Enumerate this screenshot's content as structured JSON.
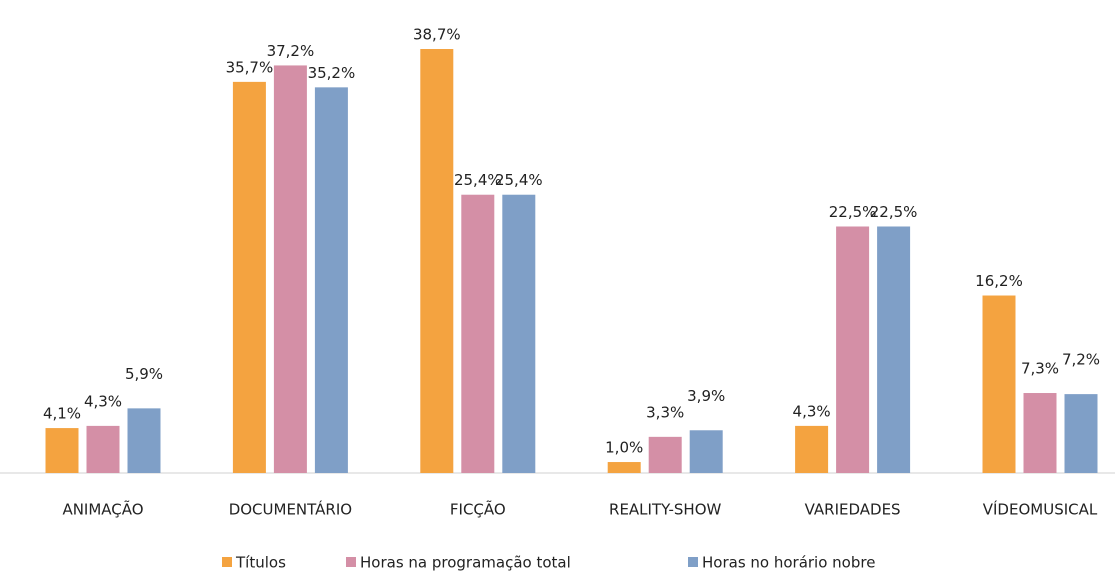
{
  "chart_data": {
    "type": "bar",
    "categories": [
      "ANIMAÇÃO",
      "DOCUMENTÁRIO",
      "FICÇÃO",
      "REALITY-SHOW",
      "VARIEDADES",
      "VÍDEOMUSICAL"
    ],
    "series": [
      {
        "name": "Títulos",
        "color": "#f4a340",
        "values": [
          4.1,
          35.7,
          38.7,
          1.0,
          4.3,
          16.2
        ],
        "value_labels": [
          "4,1%",
          "35,7%",
          "38,7%",
          "1,0%",
          "4,3%",
          "16,2%"
        ]
      },
      {
        "name": "Horas na programação total",
        "color": "#d48fa6",
        "values": [
          4.3,
          37.2,
          25.4,
          3.3,
          22.5,
          7.3
        ],
        "value_labels": [
          "4,3%",
          "37,2%",
          "25,4%",
          "3,3%",
          "22,5%",
          "7,3%"
        ]
      },
      {
        "name": "Horas no horário nobre",
        "color": "#7f9fc7",
        "values": [
          5.9,
          35.2,
          25.4,
          3.9,
          22.5,
          7.2
        ],
        "value_labels": [
          "5,9%",
          "35,2%",
          "25,4%",
          "3,9%",
          "22,5%",
          "7,2%"
        ]
      }
    ],
    "legend": "bottom"
  }
}
